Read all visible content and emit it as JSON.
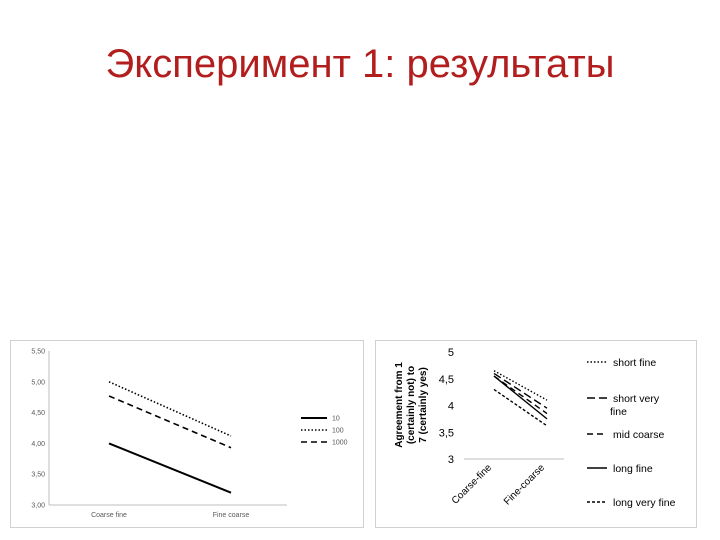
{
  "slide": {
    "title": "Эксперимент 1: результаты"
  },
  "chart_data": [
    {
      "type": "line",
      "categories": [
        "Coarse fine",
        "Fine coarse"
      ],
      "ylim": [
        3.0,
        5.5
      ],
      "yticks": [
        "3,00",
        "3,50",
        "4,00",
        "4,50",
        "5,00",
        "5,50"
      ],
      "grid": false,
      "legend": "right",
      "series": [
        {
          "name": "10",
          "values": [
            4.0,
            3.2
          ],
          "style": "solid"
        },
        {
          "name": "100",
          "values": [
            5.0,
            4.12
          ],
          "style": "dotted"
        },
        {
          "name": "1000",
          "values": [
            4.77,
            3.93
          ],
          "style": "dashed"
        }
      ]
    },
    {
      "type": "line",
      "categories": [
        "Coarse-fine",
        "Fine-coarse"
      ],
      "ylabel": "Agreement from 1 (certainly not) to 7 (certainly yes)",
      "ylim": [
        3,
        5
      ],
      "yticks": [
        "3",
        "3,5",
        "4",
        "4,5",
        "5"
      ],
      "grid": false,
      "legend": "right",
      "series": [
        {
          "name": "short fine",
          "values": [
            4.65,
            4.1
          ],
          "style": "dotted"
        },
        {
          "name": "short very fine",
          "values": [
            4.6,
            3.95
          ],
          "style": "longdash"
        },
        {
          "name": "mid coarse",
          "values": [
            4.55,
            3.85
          ],
          "style": "dashed"
        },
        {
          "name": "long fine",
          "values": [
            4.55,
            3.75
          ],
          "style": "solid"
        },
        {
          "name": "long very fine",
          "values": [
            4.3,
            3.62
          ],
          "style": "shortdash"
        }
      ]
    }
  ]
}
